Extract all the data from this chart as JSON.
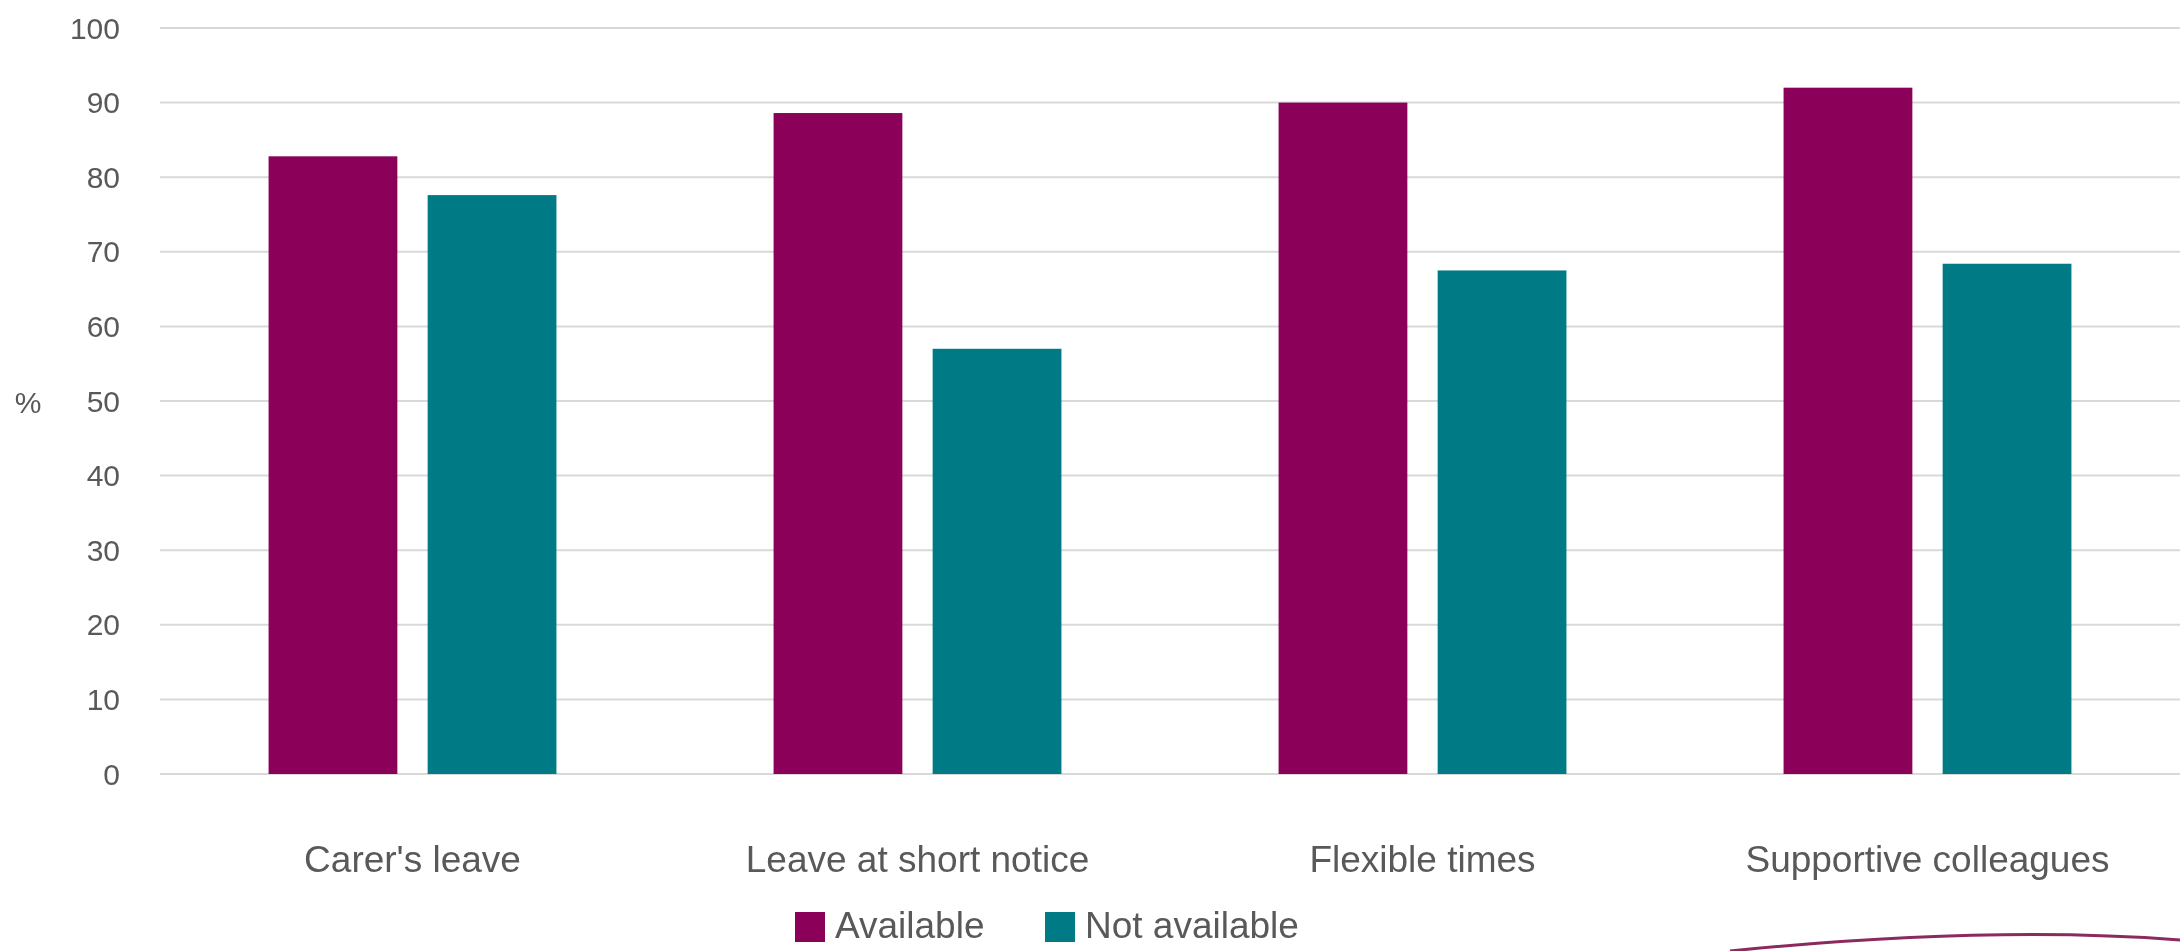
{
  "chart_data": {
    "type": "bar",
    "categories": [
      "Carer's leave",
      "Leave at short notice",
      "Flexible times",
      "Supportive colleagues"
    ],
    "series": [
      {
        "name": "Available",
        "color": "#8b0058",
        "values": [
          82.8,
          88.6,
          90.0,
          92.0
        ]
      },
      {
        "name": "Not available",
        "color": "#007a84",
        "values": [
          77.6,
          57.0,
          67.5,
          68.4
        ]
      }
    ],
    "ylabel": "%",
    "ylim": [
      0,
      100
    ],
    "yticks": [
      0,
      10,
      20,
      30,
      40,
      50,
      60,
      70,
      80,
      90,
      100
    ],
    "grid": "y",
    "legend": "bottom"
  }
}
